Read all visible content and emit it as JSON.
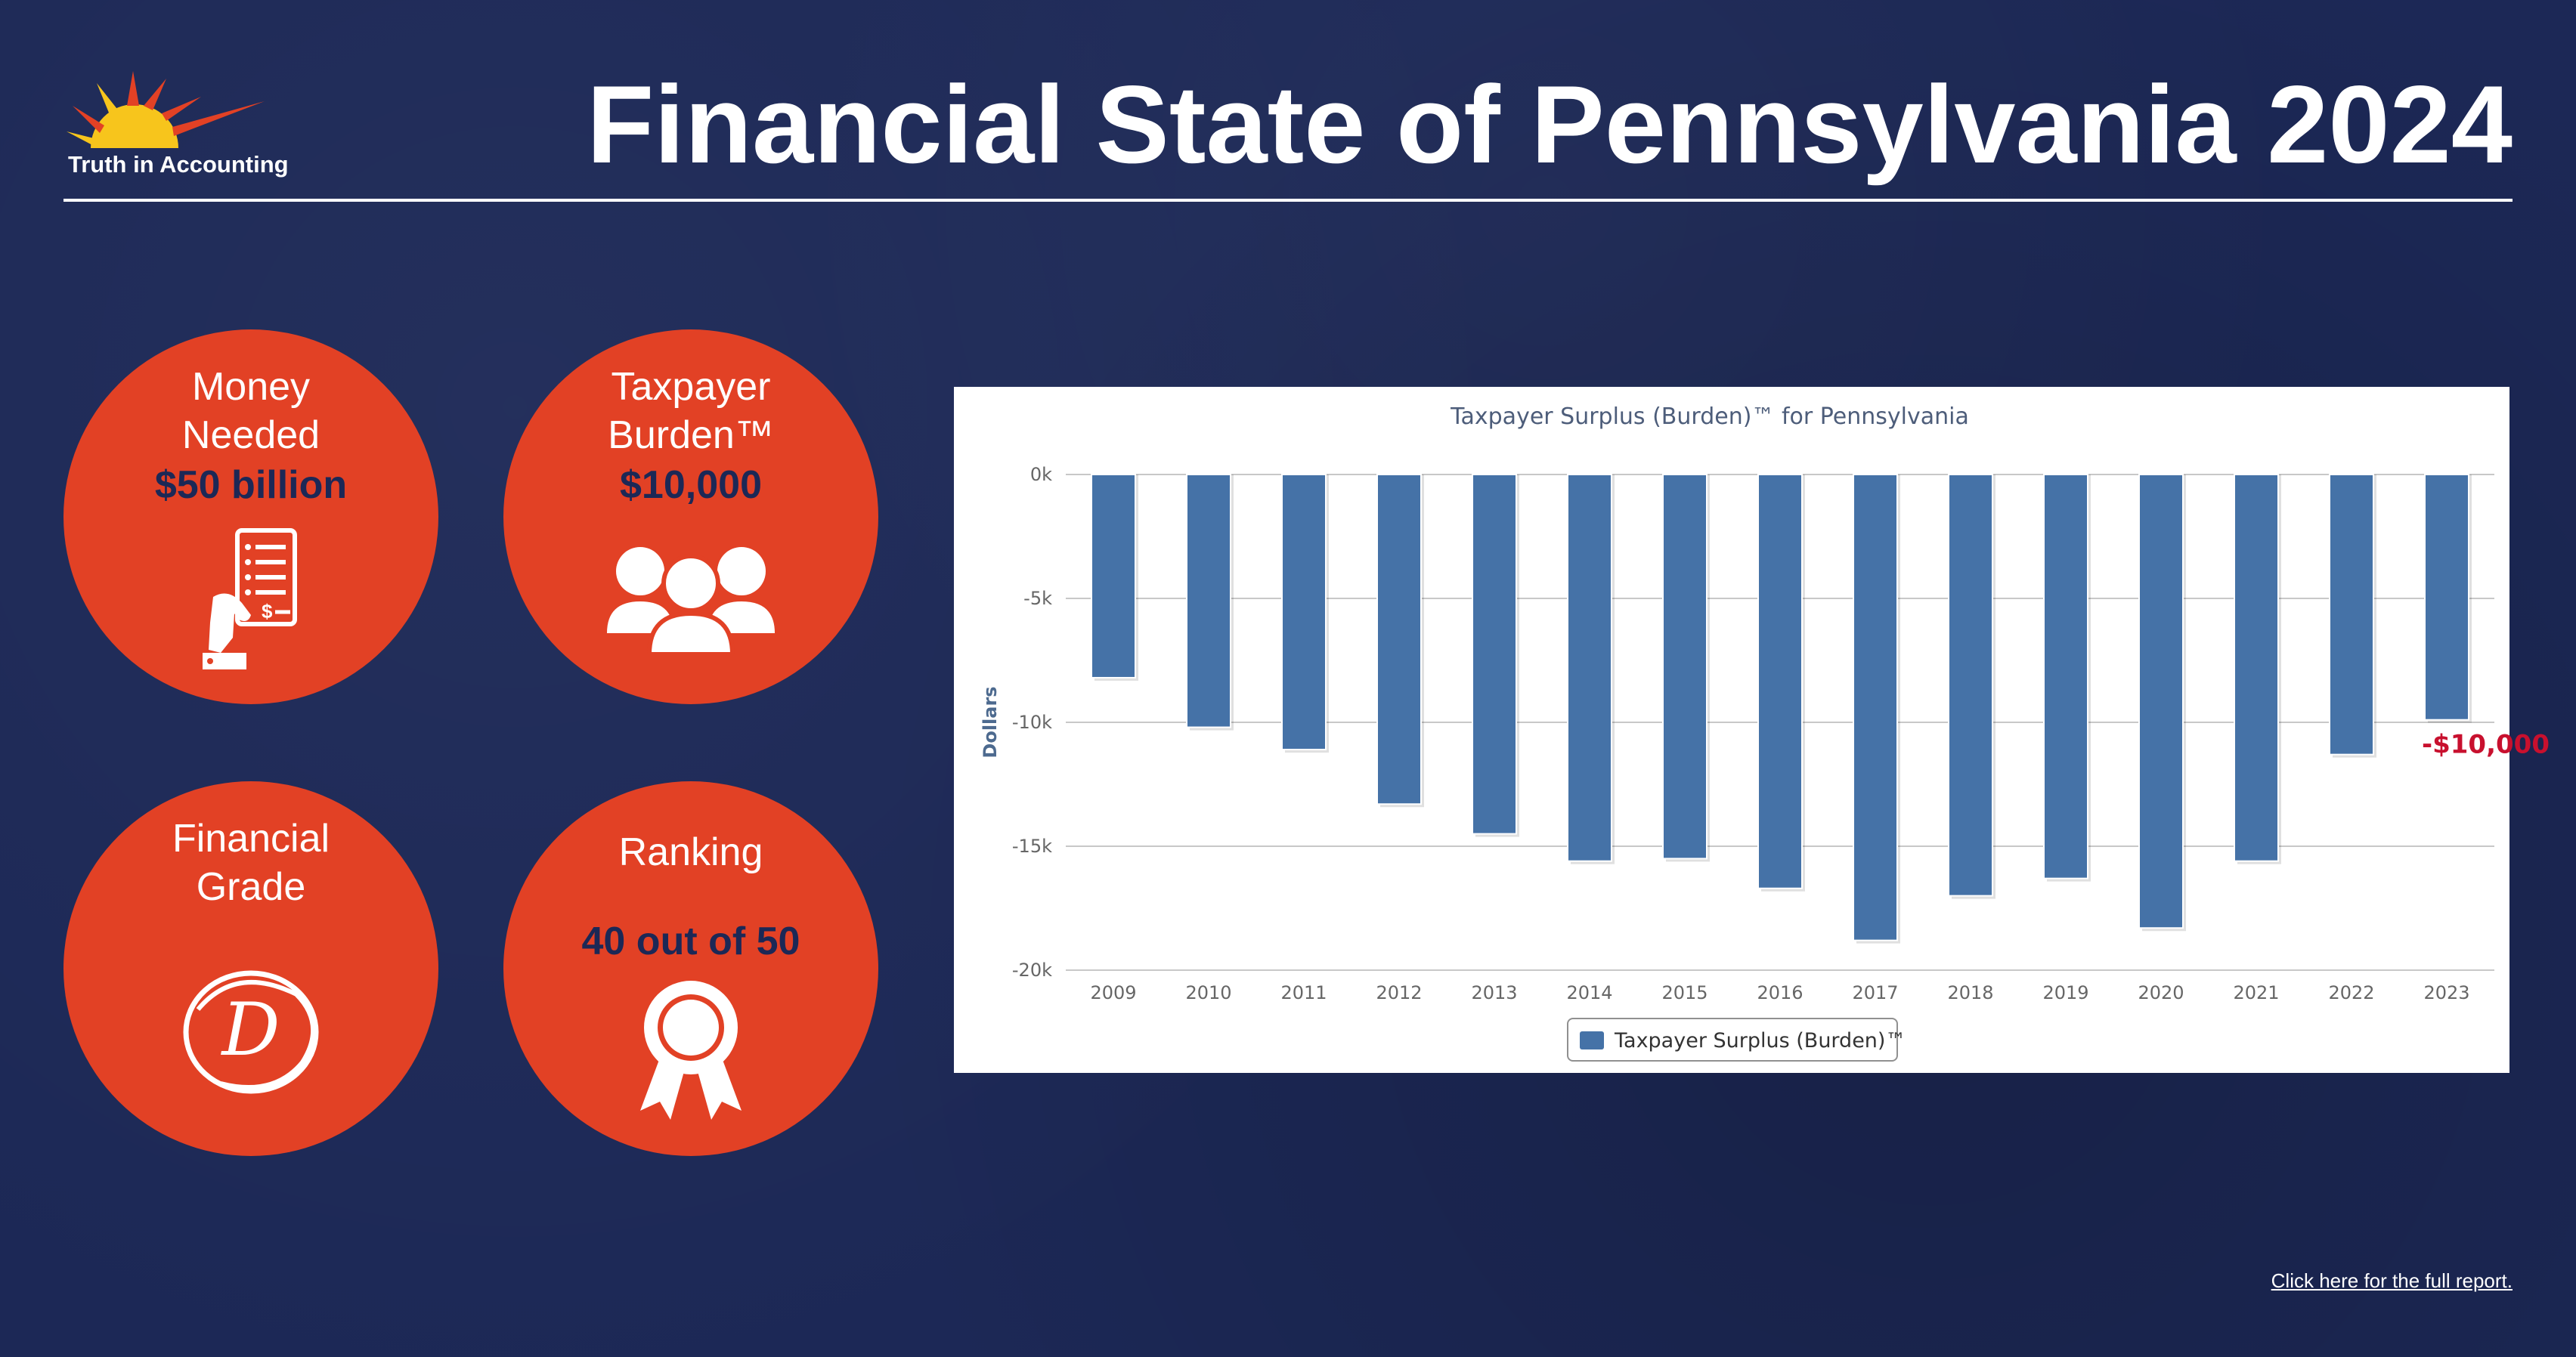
{
  "brand": {
    "logo_text": "Truth in Accounting"
  },
  "page_title": "Financial State of Pennsylvania 2024",
  "stats": {
    "money_needed": {
      "label_line1": "Money",
      "label_line2": "Needed",
      "value": "$50 billion",
      "icon": "receipt-payment-icon"
    },
    "taxpayer_burden": {
      "label_line1": "Taxpayer",
      "label_line2": "Burden™",
      "value": "$10,000",
      "icon": "people-group-icon"
    },
    "financial_grade": {
      "label_line1": "Financial",
      "label_line2": "Grade",
      "value": "D",
      "icon": "grade-circle-icon"
    },
    "ranking": {
      "label": "Ranking",
      "value": "40 out of 50",
      "icon": "award-ribbon-icon"
    }
  },
  "chart_data": {
    "type": "bar",
    "title": "Taxpayer Surplus (Burden)™ for Pennsylvania",
    "ylabel": "Dollars",
    "xlabel": "",
    "categories": [
      "2009",
      "2010",
      "2011",
      "2012",
      "2013",
      "2014",
      "2015",
      "2016",
      "2017",
      "2018",
      "2019",
      "2020",
      "2021",
      "2022",
      "2023"
    ],
    "series": [
      {
        "name": "Taxpayer Surplus (Burden)™",
        "values": [
          -8200,
          -10200,
          -11100,
          -13300,
          -14500,
          -15600,
          -15500,
          -16700,
          -18800,
          -17000,
          -16300,
          -18300,
          -15600,
          -11300,
          -9900
        ],
        "color": "#4572a7"
      }
    ],
    "ylim": [
      -20000,
      0
    ],
    "yticks": [
      0,
      -5000,
      -10000,
      -15000,
      -20000
    ],
    "ytick_labels": [
      "0k",
      "-5k",
      "-10k",
      "-15k",
      "-20k"
    ],
    "annotation": {
      "category": "2023",
      "text": "-$10,000",
      "color": "#c8102e"
    },
    "grid": true,
    "legend_position": "bottom-center"
  },
  "footer": {
    "report_link": "Click here for the full report."
  },
  "colors": {
    "background": "#1c2856",
    "accent": "#e24125",
    "bar": "#4572a7",
    "annotation": "#c8102e"
  }
}
